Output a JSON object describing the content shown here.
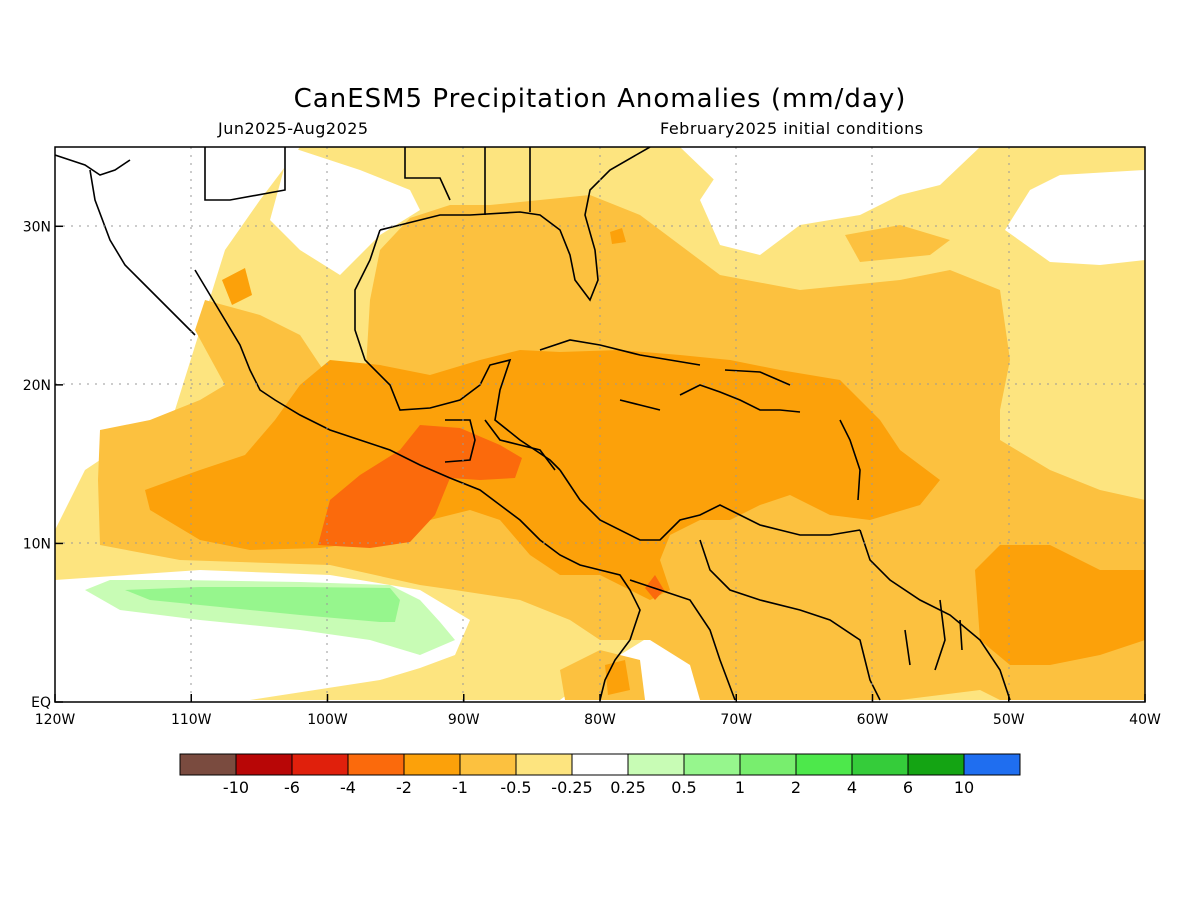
{
  "title": "CanESM5 Precipitation Anomalies (mm/day)",
  "subtitle_left": "Jun2025-Aug2025",
  "subtitle_right": "February2025 initial conditions",
  "map": {
    "lon_range": [
      -120,
      -40
    ],
    "lat_range": [
      0,
      35
    ],
    "x_ticks": [
      {
        "lon": -120,
        "label": "120W"
      },
      {
        "lon": -110,
        "label": "110W"
      },
      {
        "lon": -100,
        "label": "100W"
      },
      {
        "lon": -90,
        "label": "90W"
      },
      {
        "lon": -80,
        "label": "80W"
      },
      {
        "lon": -70,
        "label": "70W"
      },
      {
        "lon": -60,
        "label": "60W"
      },
      {
        "lon": -50,
        "label": "50W"
      },
      {
        "lon": -40,
        "label": "40W"
      }
    ],
    "y_ticks": [
      {
        "lat": 0,
        "label": "EQ"
      },
      {
        "lat": 10,
        "label": "10N"
      },
      {
        "lat": 20,
        "label": "20N"
      },
      {
        "lat": 30,
        "label": "30N"
      }
    ]
  },
  "colorbar": {
    "colors": [
      "#7a4b3f",
      "#b80606",
      "#e0200c",
      "#fb6a0c",
      "#fca10a",
      "#fcc13f",
      "#fde47f",
      "#ffffff",
      "#c8fcb5",
      "#96f68d",
      "#78ee6e",
      "#4de84b",
      "#35cc3a",
      "#14a413",
      "#1f6ef0"
    ],
    "labels": [
      "-10",
      "-6",
      "-4",
      "-2",
      "-1",
      "-0.5",
      "-0.25",
      "0.25",
      "0.5",
      "1",
      "2",
      "4",
      "6",
      "10"
    ]
  }
}
